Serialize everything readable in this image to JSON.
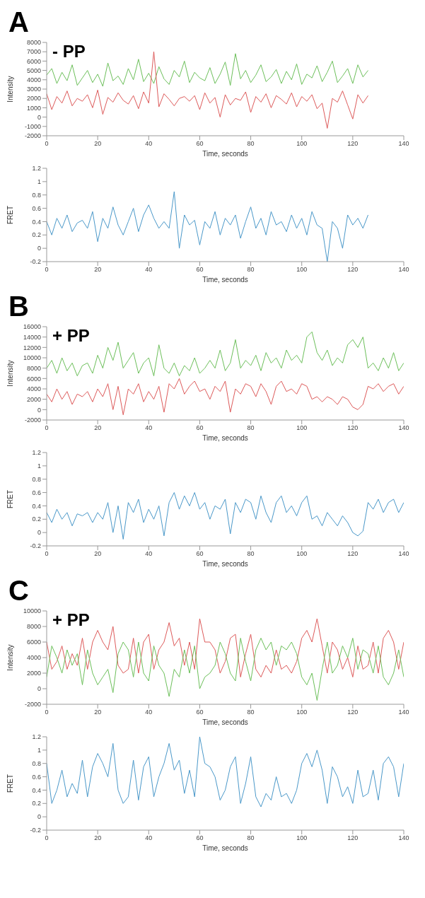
{
  "chart_data": [
    {
      "type": "line",
      "title": "A",
      "annotations": [
        "- PP"
      ],
      "xlabel": "Time, seconds",
      "ylabel": "Intensity",
      "line_style": "solid",
      "x": [
        0,
        2,
        4,
        6,
        8,
        10,
        12,
        14,
        16,
        18,
        20,
        22,
        24,
        26,
        28,
        30,
        32,
        34,
        36,
        38,
        40,
        42,
        44,
        46,
        48,
        50,
        52,
        54,
        56,
        58,
        60,
        62,
        64,
        66,
        68,
        70,
        72,
        74,
        76,
        78,
        80,
        82,
        84,
        86,
        88,
        90,
        92,
        94,
        96,
        98,
        100,
        102,
        104,
        106,
        108,
        110,
        112,
        114,
        116,
        118,
        120,
        122,
        124,
        126
      ],
      "xlim": [
        0,
        140
      ],
      "xticks": [
        0,
        20,
        40,
        60,
        80,
        100,
        120,
        140
      ],
      "ylim": [
        -2000,
        8000
      ],
      "yticks": [
        -2000,
        -1000,
        0,
        1000,
        2000,
        3000,
        4000,
        5000,
        6000,
        7000,
        8000
      ],
      "series": [
        {
          "color": "#6cbf5a",
          "values": [
            4500,
            5200,
            3600,
            4800,
            3900,
            5600,
            3400,
            4200,
            5000,
            3700,
            4600,
            3300,
            5800,
            3900,
            4400,
            3500,
            5200,
            4000,
            6200,
            3800,
            4700,
            3600,
            5400,
            4100,
            3500,
            5000,
            4300,
            6000,
            3700,
            4800,
            4200,
            3900,
            5300,
            3600,
            4600,
            5900,
            3400,
            6800,
            4100,
            5000,
            3700,
            4500,
            5600,
            3800,
            4300,
            5100,
            3600,
            4900,
            4000,
            5700,
            3500,
            4600,
            4200,
            5500,
            3800,
            4800,
            6000,
            3700,
            4400,
            5200,
            3600,
            5600,
            4300,
            5000
          ]
        },
        {
          "color": "#dd5a5a",
          "values": [
            2500,
            800,
            2200,
            1500,
            2800,
            1200,
            2000,
            1700,
            2400,
            1000,
            2900,
            300,
            2100,
            1600,
            2600,
            1800,
            1400,
            2300,
            900,
            2700,
            1500,
            7000,
            1100,
            2500,
            1900,
            1200,
            2000,
            2200,
            1700,
            2300,
            800,
            2600,
            1500,
            2100,
            0,
            2400,
            1300,
            2000,
            1800,
            2700,
            500,
            2200,
            1600,
            2500,
            1000,
            2300,
            1900,
            1400,
            2600,
            1100,
            2200,
            1700,
            2400,
            900,
            1500,
            -1200,
            2000,
            1600,
            2800,
            1300,
            -200,
            2400,
            1500,
            2300
          ]
        }
      ]
    },
    {
      "type": "line",
      "xlabel": "Time, seconds",
      "ylabel": "FRET",
      "line_style": "solid",
      "x": [
        0,
        2,
        4,
        6,
        8,
        10,
        12,
        14,
        16,
        18,
        20,
        22,
        24,
        26,
        28,
        30,
        32,
        34,
        36,
        38,
        40,
        42,
        44,
        46,
        48,
        50,
        52,
        54,
        56,
        58,
        60,
        62,
        64,
        66,
        68,
        70,
        72,
        74,
        76,
        78,
        80,
        82,
        84,
        86,
        88,
        90,
        92,
        94,
        96,
        98,
        100,
        102,
        104,
        106,
        108,
        110,
        112,
        114,
        116,
        118,
        120,
        122,
        124,
        126
      ],
      "xlim": [
        0,
        140
      ],
      "xticks": [
        0,
        20,
        40,
        60,
        80,
        100,
        120,
        140
      ],
      "ylim": [
        -0.2,
        1.2
      ],
      "yticks": [
        -0.2,
        0,
        0.2,
        0.4,
        0.6,
        0.8,
        1,
        1.2
      ],
      "series": [
        {
          "color": "#4a98c9",
          "values": [
            0.4,
            0.2,
            0.45,
            0.3,
            0.5,
            0.25,
            0.38,
            0.42,
            0.3,
            0.55,
            0.1,
            0.45,
            0.3,
            0.62,
            0.35,
            0.2,
            0.4,
            0.6,
            0.25,
            0.5,
            0.65,
            0.45,
            0.3,
            0.4,
            0.3,
            0.85,
            0.0,
            0.5,
            0.35,
            0.42,
            0.05,
            0.4,
            0.3,
            0.55,
            0.2,
            0.45,
            0.35,
            0.5,
            0.15,
            0.4,
            0.62,
            0.3,
            0.45,
            0.2,
            0.55,
            0.35,
            0.4,
            0.25,
            0.5,
            0.3,
            0.45,
            0.2,
            0.55,
            0.35,
            0.3,
            -0.2,
            0.4,
            0.3,
            0.0,
            0.5,
            0.35,
            0.45,
            0.3,
            0.5
          ]
        }
      ]
    },
    {
      "type": "line",
      "title": "B",
      "annotations": [
        "+ PP"
      ],
      "xlabel": "Time, seconds",
      "ylabel": "Intensity",
      "line_style": "solid",
      "x": [
        0,
        2,
        4,
        6,
        8,
        10,
        12,
        14,
        16,
        18,
        20,
        22,
        24,
        26,
        28,
        30,
        32,
        34,
        36,
        38,
        40,
        42,
        44,
        46,
        48,
        50,
        52,
        54,
        56,
        58,
        60,
        62,
        64,
        66,
        68,
        70,
        72,
        74,
        76,
        78,
        80,
        82,
        84,
        86,
        88,
        90,
        92,
        94,
        96,
        98,
        100,
        102,
        104,
        106,
        108,
        110,
        112,
        114,
        116,
        118,
        120,
        122,
        124,
        126,
        128,
        130,
        132,
        134,
        136,
        138,
        140
      ],
      "xlim": [
        0,
        140
      ],
      "xticks": [
        0,
        20,
        40,
        60,
        80,
        100,
        120,
        140
      ],
      "ylim": [
        -2000,
        16000
      ],
      "yticks": [
        -2000,
        0,
        2000,
        4000,
        6000,
        8000,
        10000,
        12000,
        14000,
        16000
      ],
      "series": [
        {
          "color": "#6cbf5a",
          "values": [
            8000,
            9500,
            7000,
            10000,
            7500,
            9000,
            6500,
            8500,
            9000,
            7000,
            10500,
            8000,
            12000,
            9500,
            13000,
            8000,
            9500,
            11000,
            7000,
            9000,
            10000,
            6500,
            12500,
            8000,
            7000,
            9000,
            6500,
            8500,
            7500,
            10000,
            7000,
            8000,
            9500,
            8000,
            11500,
            7500,
            9000,
            13500,
            8000,
            9500,
            8500,
            10500,
            7500,
            11000,
            9000,
            10000,
            8000,
            11500,
            9500,
            10500,
            9000,
            14000,
            15000,
            11000,
            9500,
            11500,
            8500,
            10000,
            9000,
            12500,
            13500,
            12000,
            14000,
            8000,
            9000,
            7500,
            10000,
            8000,
            11000,
            7500,
            9000
          ]
        },
        {
          "color": "#dd5a5a",
          "values": [
            3000,
            1500,
            4000,
            2000,
            3500,
            1000,
            3000,
            2500,
            3500,
            1500,
            4000,
            2500,
            5000,
            0,
            4500,
            -1000,
            4000,
            3000,
            5000,
            1500,
            3500,
            2000,
            4500,
            -500,
            5000,
            4000,
            6000,
            3000,
            4500,
            5500,
            3500,
            4000,
            2000,
            4500,
            3500,
            5500,
            -500,
            4000,
            3000,
            5000,
            4500,
            2500,
            5000,
            3500,
            1000,
            4500,
            5500,
            3500,
            4000,
            3000,
            5000,
            4500,
            2000,
            2500,
            1500,
            2500,
            2000,
            1000,
            2500,
            2000,
            500,
            0,
            1000,
            4500,
            4000,
            5000,
            3500,
            4500,
            5000,
            3000,
            4500
          ]
        }
      ]
    },
    {
      "type": "line",
      "xlabel": "Time, seconds",
      "ylabel": "FRET",
      "line_style": "solid",
      "x": [
        0,
        2,
        4,
        6,
        8,
        10,
        12,
        14,
        16,
        18,
        20,
        22,
        24,
        26,
        28,
        30,
        32,
        34,
        36,
        38,
        40,
        42,
        44,
        46,
        48,
        50,
        52,
        54,
        56,
        58,
        60,
        62,
        64,
        66,
        68,
        70,
        72,
        74,
        76,
        78,
        80,
        82,
        84,
        86,
        88,
        90,
        92,
        94,
        96,
        98,
        100,
        102,
        104,
        106,
        108,
        110,
        112,
        114,
        116,
        118,
        120,
        122,
        124,
        126,
        128,
        130,
        132,
        134,
        136,
        138,
        140
      ],
      "xlim": [
        0,
        140
      ],
      "xticks": [
        0,
        20,
        40,
        60,
        80,
        100,
        120,
        140
      ],
      "ylim": [
        -0.2,
        1.2
      ],
      "yticks": [
        -0.2,
        0,
        0.2,
        0.4,
        0.6,
        0.8,
        1,
        1.2
      ],
      "series": [
        {
          "color": "#4a98c9",
          "values": [
            0.3,
            0.15,
            0.35,
            0.2,
            0.3,
            0.1,
            0.28,
            0.25,
            0.3,
            0.15,
            0.3,
            0.2,
            0.45,
            0.0,
            0.4,
            -0.1,
            0.45,
            0.3,
            0.5,
            0.15,
            0.35,
            0.2,
            0.4,
            -0.05,
            0.45,
            0.6,
            0.35,
            0.55,
            0.4,
            0.6,
            0.35,
            0.45,
            0.2,
            0.4,
            0.35,
            0.5,
            -0.02,
            0.45,
            0.3,
            0.5,
            0.45,
            0.2,
            0.55,
            0.3,
            0.15,
            0.45,
            0.55,
            0.3,
            0.4,
            0.25,
            0.45,
            0.55,
            0.2,
            0.25,
            0.1,
            0.3,
            0.2,
            0.1,
            0.25,
            0.15,
            0.0,
            -0.05,
            0.02,
            0.45,
            0.35,
            0.5,
            0.3,
            0.45,
            0.5,
            0.3,
            0.45
          ]
        }
      ]
    },
    {
      "type": "line",
      "title": "C",
      "annotations": [
        "+ PP"
      ],
      "xlabel": "Time, seconds",
      "ylabel": "Intensity",
      "line_style": "solid",
      "x": [
        0,
        2,
        4,
        6,
        8,
        10,
        12,
        14,
        16,
        18,
        20,
        22,
        24,
        26,
        28,
        30,
        32,
        34,
        36,
        38,
        40,
        42,
        44,
        46,
        48,
        50,
        52,
        54,
        56,
        58,
        60,
        62,
        64,
        66,
        68,
        70,
        72,
        74,
        76,
        78,
        80,
        82,
        84,
        86,
        88,
        90,
        92,
        94,
        96,
        98,
        100,
        102,
        104,
        106,
        108,
        110,
        112,
        114,
        116,
        118,
        120,
        122,
        124,
        126,
        128,
        130,
        132,
        134,
        136,
        138,
        140
      ],
      "xlim": [
        0,
        140
      ],
      "xticks": [
        0,
        20,
        40,
        60,
        80,
        100,
        120,
        140
      ],
      "ylim": [
        -2000,
        10000
      ],
      "yticks": [
        -2000,
        0,
        2000,
        4000,
        6000,
        8000,
        10000
      ],
      "series": [
        {
          "color": "#dd5a5a",
          "values": [
            6000,
            2500,
            3500,
            5500,
            2500,
            4500,
            3000,
            6500,
            2500,
            6000,
            7500,
            6000,
            5000,
            8000,
            3000,
            2000,
            2500,
            6500,
            2000,
            6000,
            7000,
            2500,
            5000,
            6000,
            8500,
            5500,
            6500,
            3000,
            6000,
            2500,
            9000,
            6000,
            6000,
            5000,
            2000,
            3500,
            6500,
            7000,
            1500,
            4500,
            7000,
            2500,
            1500,
            3000,
            2000,
            5000,
            2500,
            3000,
            2000,
            3500,
            6500,
            7500,
            6000,
            9000,
            5500,
            2000,
            6000,
            5000,
            2500,
            4000,
            1500,
            5500,
            2500,
            3000,
            6000,
            2000,
            6500,
            7500,
            6000,
            2500,
            6000
          ]
        },
        {
          "color": "#6cbf5a",
          "values": [
            1500,
            5500,
            4000,
            2000,
            5000,
            3000,
            4500,
            500,
            5000,
            2000,
            500,
            1500,
            2500,
            -500,
            4500,
            6000,
            5000,
            1500,
            6000,
            2000,
            1000,
            5500,
            3000,
            2000,
            -1000,
            2500,
            1500,
            5000,
            2000,
            5500,
            0,
            1500,
            2000,
            3000,
            6000,
            4500,
            2000,
            1000,
            6500,
            3500,
            1000,
            5000,
            6500,
            5000,
            6000,
            3000,
            5500,
            5000,
            6000,
            4500,
            1500,
            500,
            2000,
            -1500,
            2500,
            6000,
            2000,
            3000,
            5500,
            4000,
            6500,
            2500,
            5000,
            4500,
            2000,
            5500,
            1500,
            500,
            2000,
            5000,
            1500
          ]
        }
      ]
    },
    {
      "type": "line",
      "xlabel": "Time, seconds",
      "ylabel": "FRET",
      "line_style": "solid",
      "x": [
        0,
        2,
        4,
        6,
        8,
        10,
        12,
        14,
        16,
        18,
        20,
        22,
        24,
        26,
        28,
        30,
        32,
        34,
        36,
        38,
        40,
        42,
        44,
        46,
        48,
        50,
        52,
        54,
        56,
        58,
        60,
        62,
        64,
        66,
        68,
        70,
        72,
        74,
        76,
        78,
        80,
        82,
        84,
        86,
        88,
        90,
        92,
        94,
        96,
        98,
        100,
        102,
        104,
        106,
        108,
        110,
        112,
        114,
        116,
        118,
        120,
        122,
        124,
        126,
        128,
        130,
        132,
        134,
        136,
        138,
        140
      ],
      "xlim": [
        0,
        140
      ],
      "xticks": [
        0,
        20,
        40,
        60,
        80,
        100,
        120,
        140
      ],
      "ylim": [
        -0.2,
        1.2
      ],
      "yticks": [
        -0.2,
        0,
        0.2,
        0.4,
        0.6,
        0.8,
        1,
        1.2
      ],
      "series": [
        {
          "color": "#4a98c9",
          "values": [
            0.8,
            0.2,
            0.4,
            0.7,
            0.3,
            0.5,
            0.35,
            0.85,
            0.3,
            0.75,
            0.95,
            0.8,
            0.6,
            1.1,
            0.4,
            0.2,
            0.3,
            0.85,
            0.25,
            0.75,
            0.9,
            0.3,
            0.6,
            0.8,
            1.1,
            0.7,
            0.85,
            0.35,
            0.7,
            0.3,
            1.2,
            0.8,
            0.75,
            0.6,
            0.25,
            0.4,
            0.75,
            0.9,
            0.2,
            0.5,
            0.9,
            0.3,
            0.15,
            0.35,
            0.25,
            0.6,
            0.3,
            0.35,
            0.2,
            0.4,
            0.8,
            0.95,
            0.75,
            1.0,
            0.7,
            0.2,
            0.75,
            0.6,
            0.3,
            0.45,
            0.2,
            0.7,
            0.3,
            0.35,
            0.7,
            0.25,
            0.8,
            0.9,
            0.75,
            0.3,
            0.8
          ]
        }
      ]
    }
  ]
}
